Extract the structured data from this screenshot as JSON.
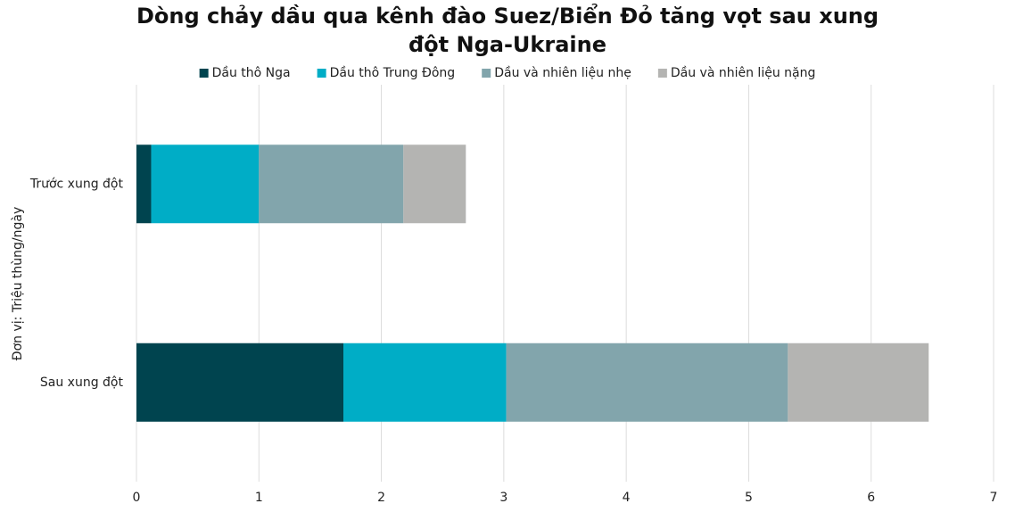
{
  "chart_data": {
    "type": "stacked-bar-horizontal",
    "title": "Dòng chảy dầu qua kênh đào Suez/Biển Đỏ tăng vọt sau xung đột Nga-Ukraine",
    "y_label": "Đơn vị: Triệu thùng/ngày",
    "categories": [
      "Trước xung đột",
      "Sau xung đột"
    ],
    "series": [
      {
        "name": "Dầu thô Nga",
        "color": "#00444f",
        "values": [
          0.12,
          1.69
        ]
      },
      {
        "name": "Dầu thô Trung Đông",
        "color": "#00adc6",
        "values": [
          0.88,
          1.33
        ]
      },
      {
        "name": "Dầu và nhiên liệu nhẹ",
        "color": "#82a5ac",
        "values": [
          1.18,
          2.3
        ]
      },
      {
        "name": "Dầu và nhiên liệu nặng",
        "color": "#b4b4b2",
        "values": [
          0.51,
          1.15
        ]
      }
    ],
    "xlim": [
      0,
      7
    ],
    "xticks": [
      0,
      1,
      2,
      3,
      4,
      5,
      6,
      7
    ],
    "grid": true,
    "legend": "top"
  }
}
